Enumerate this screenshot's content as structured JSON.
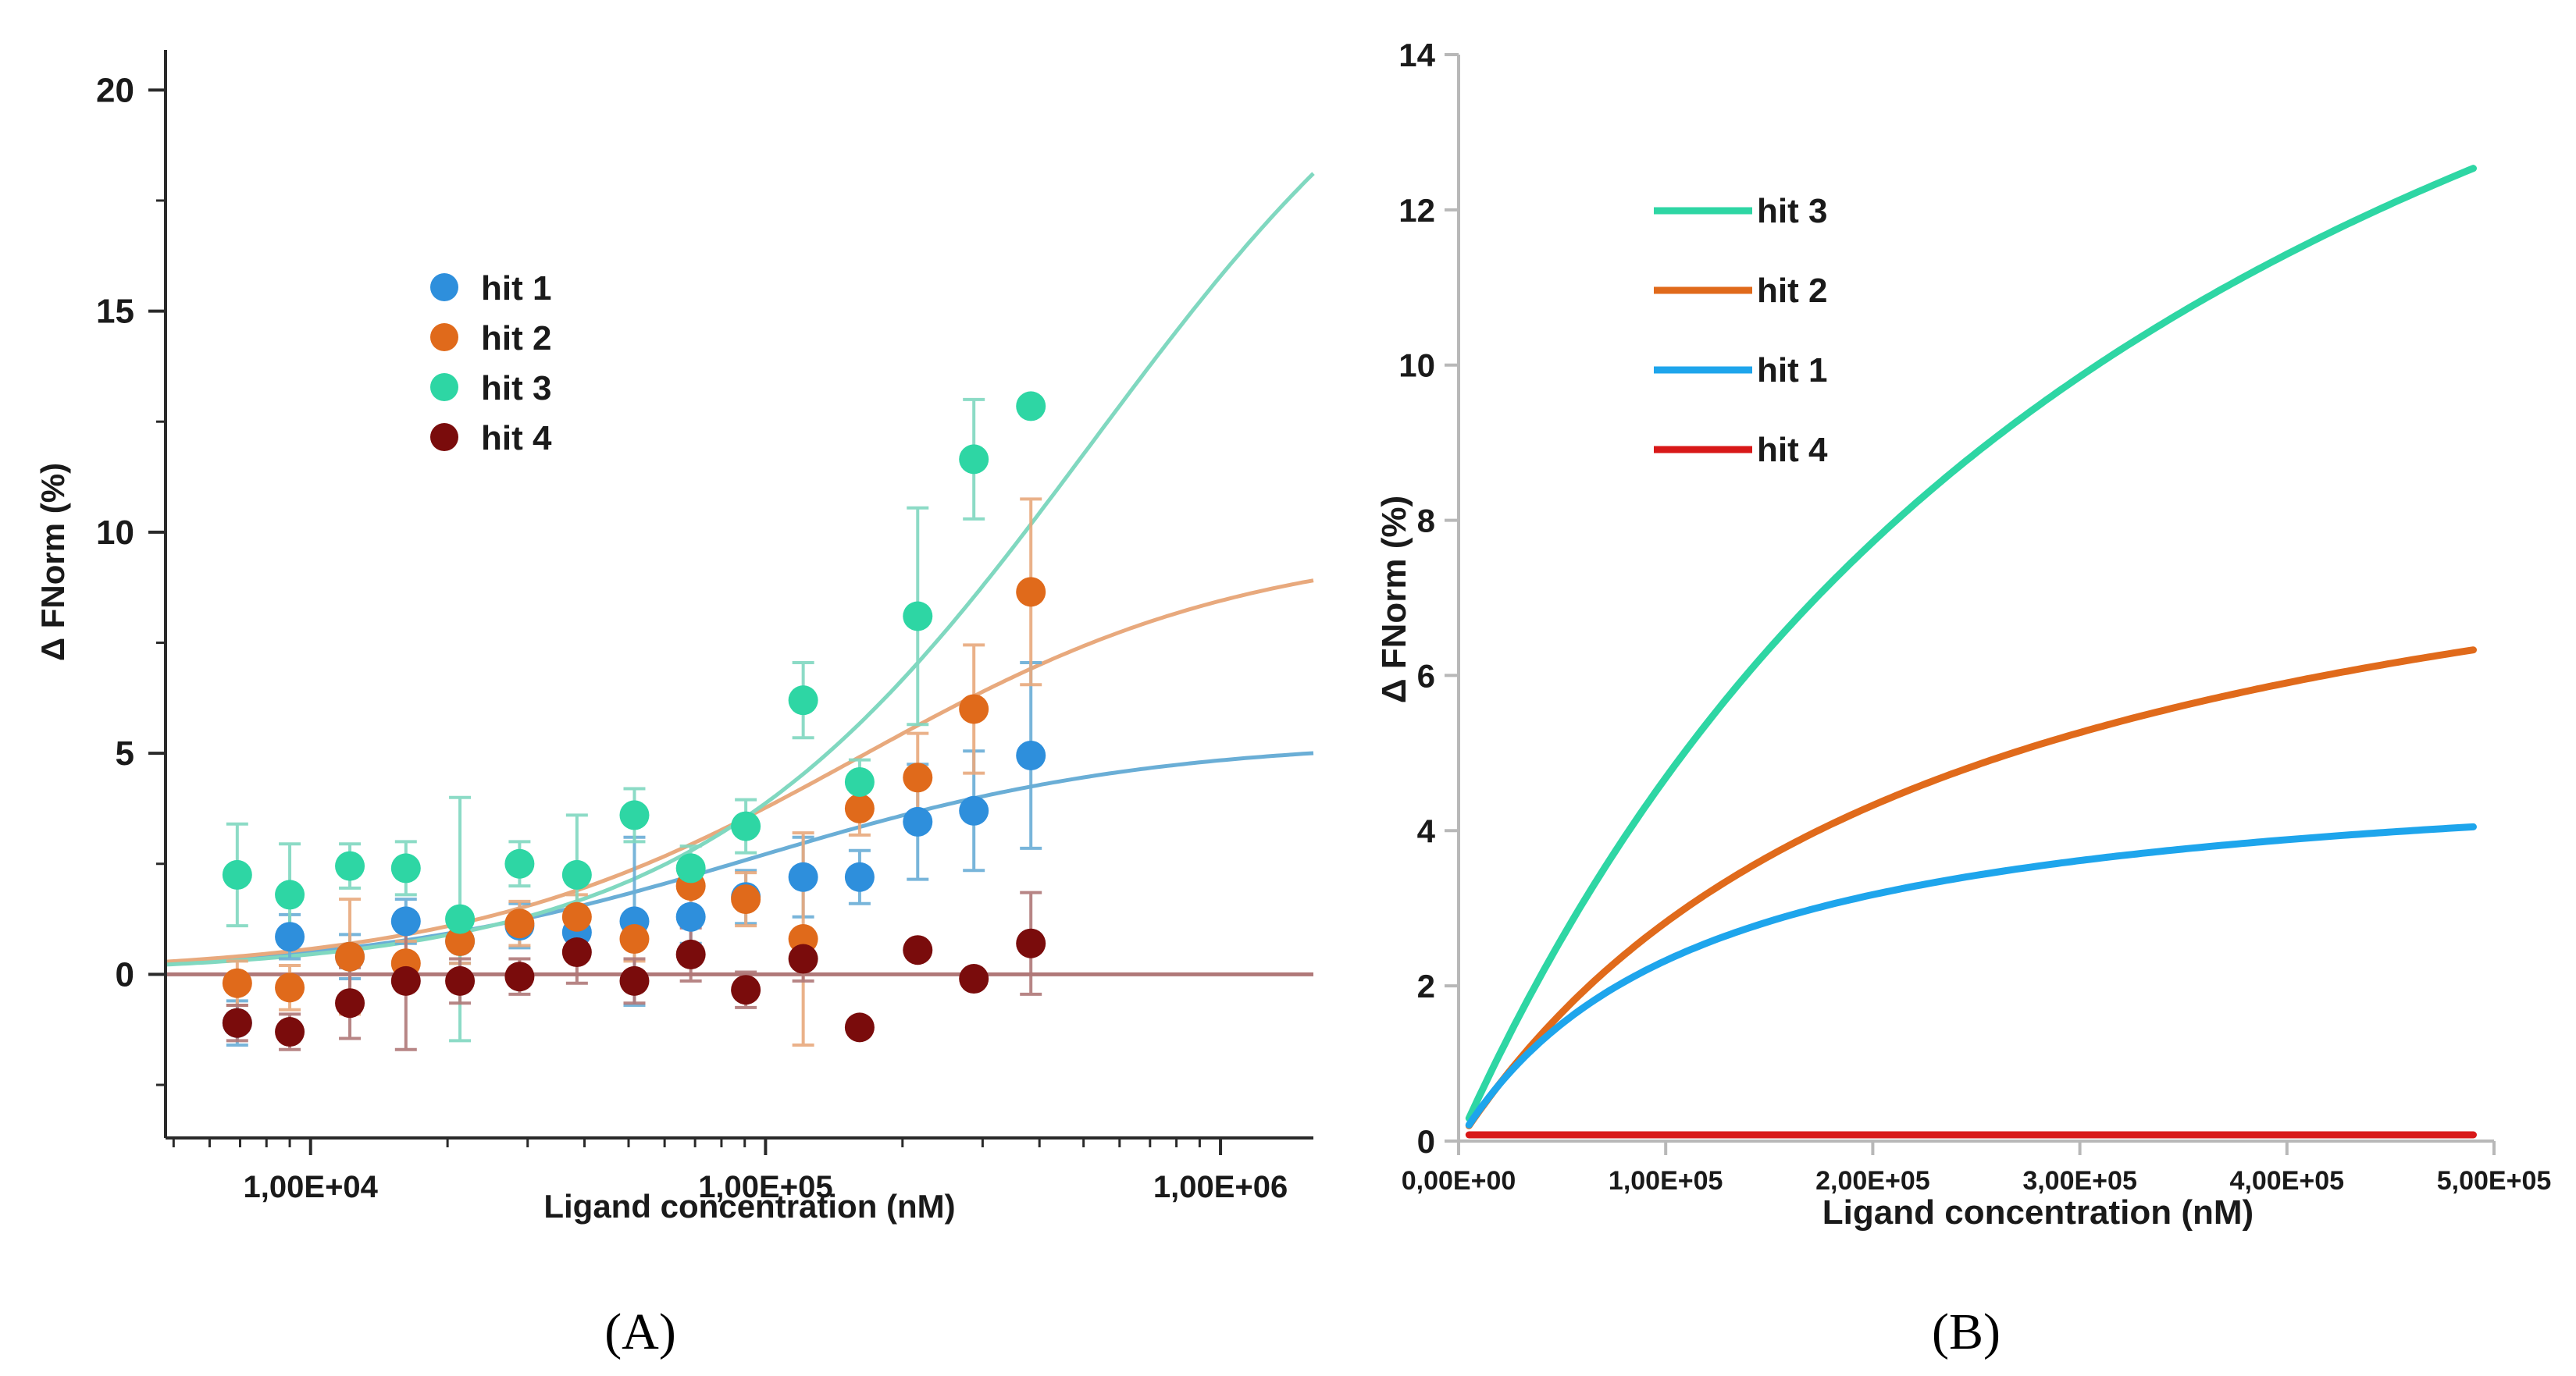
{
  "chart_data": [
    {
      "panel_label": "(A)",
      "type": "scatter",
      "x_scale": "log",
      "xlabel": "Ligand concentration (nM)",
      "ylabel": "Δ FNorm (%)",
      "xlim": [
        4800,
        1600000
      ],
      "ylim": [
        -3.7,
        20.8
      ],
      "x_ticks": [
        10000,
        100000,
        1000000
      ],
      "x_tick_labels": [
        "1,00E+04",
        "1,00E+05",
        "1,00E+06"
      ],
      "y_ticks": [
        0,
        5,
        10,
        15,
        20
      ],
      "y_tick_labels": [
        "0",
        "5",
        "10",
        "15",
        "20"
      ],
      "legend_position": "upper-left",
      "series": [
        {
          "name": "hit 1",
          "color": "#2e8fdc",
          "curve_color": "#6aaed6",
          "x": [
            6900,
            9000,
            12200,
            16200,
            21300,
            28800,
            38500,
            51500,
            68500,
            90500,
            121000,
            161000,
            216000,
            287000,
            383000
          ],
          "y": [
            -1.1,
            0.85,
            0.4,
            1.2,
            0.75,
            1.1,
            0.95,
            1.2,
            1.3,
            1.75,
            2.2,
            2.2,
            3.45,
            3.7,
            4.95
          ],
          "err": [
            0.5,
            0.5,
            0.5,
            0.5,
            0.5,
            0.5,
            0.5,
            1.9,
            0.6,
            0.6,
            0.9,
            0.6,
            1.3,
            1.35,
            2.1
          ],
          "fit": {
            "base": 0.0,
            "amplitude": 5.3,
            "kd": 95000
          }
        },
        {
          "name": "hit 2",
          "color": "#e06a1b",
          "curve_color": "#e8a97d",
          "x": [
            6900,
            9000,
            12200,
            16200,
            21300,
            28800,
            38500,
            51500,
            68500,
            90500,
            121000,
            161000,
            216000,
            287000,
            383000
          ],
          "y": [
            -0.2,
            -0.3,
            0.4,
            0.25,
            0.75,
            1.15,
            1.3,
            0.8,
            2.0,
            1.7,
            0.8,
            3.75,
            4.45,
            6.0,
            8.65
          ],
          "err": [
            0.5,
            0.5,
            1.3,
            0.5,
            0.5,
            0.5,
            0.5,
            0.5,
            0.6,
            0.6,
            2.4,
            0.6,
            1.0,
            1.45,
            2.1
          ],
          "fit": {
            "base": 0.0,
            "amplitude": 9.8,
            "kd": 160000
          }
        },
        {
          "name": "hit 3",
          "color": "#2ed6a4",
          "curve_color": "#80d8c0",
          "x": [
            6900,
            9000,
            12200,
            16200,
            21300,
            28800,
            38500,
            51500,
            68500,
            90500,
            121000,
            161000,
            216000,
            287000,
            383000
          ],
          "y": [
            2.25,
            1.8,
            2.45,
            2.4,
            1.25,
            2.5,
            2.25,
            3.6,
            2.4,
            3.35,
            6.2,
            4.35,
            8.1,
            11.65,
            12.85
          ],
          "err": [
            1.15,
            1.15,
            0.5,
            0.6,
            2.75,
            0.5,
            1.35,
            0.6,
            0.5,
            0.6,
            0.85,
            0.5,
            2.45,
            1.35,
            0.0
          ],
          "fit": {
            "base": 0.0,
            "amplitude": 24.0,
            "kd": 520000
          }
        },
        {
          "name": "hit 4",
          "color": "#7a0c0c",
          "curve_color": "#b07878",
          "x": [
            6900,
            9000,
            12200,
            16200,
            21300,
            28800,
            38500,
            51500,
            68500,
            90500,
            121000,
            161000,
            216000,
            287000,
            383000
          ],
          "y": [
            -1.1,
            -1.3,
            -0.65,
            -0.15,
            -0.15,
            -0.05,
            0.5,
            -0.15,
            0.45,
            -0.35,
            0.35,
            -1.2,
            0.55,
            -0.1,
            0.7
          ],
          "err": [
            0.4,
            0.4,
            0.8,
            1.55,
            0.5,
            0.4,
            0.7,
            0.5,
            0.6,
            0.4,
            0.5,
            0.0,
            0.0,
            0.0,
            1.15
          ],
          "fit": {
            "base": 0.0,
            "amplitude": 0.0,
            "kd": 100000
          }
        }
      ]
    },
    {
      "panel_label": "(B)",
      "type": "line",
      "xlabel": "Ligand concentration (nM)",
      "ylabel": "Δ FNorm (%)",
      "xlim": [
        0,
        500000
      ],
      "ylim": [
        0,
        14
      ],
      "x_ticks": [
        0,
        100000,
        200000,
        300000,
        400000,
        500000
      ],
      "x_tick_labels": [
        "0,00E+00",
        "1,00E+05",
        "2,00E+05",
        "3,00E+05",
        "4,00E+05",
        "5,00E+05"
      ],
      "y_ticks": [
        0,
        2,
        4,
        6,
        8,
        10,
        12,
        14
      ],
      "y_tick_labels": [
        "0",
        "2",
        "4",
        "6",
        "8",
        "10",
        "12",
        "14"
      ],
      "legend_position": "upper-left",
      "legend_order": [
        "hit 3",
        "hit 2",
        "hit 1",
        "hit 4"
      ],
      "x_range_plotted": [
        5000,
        490000
      ],
      "series": [
        {
          "name": "hit 3",
          "color": "#2ed6a4",
          "model": {
            "amplitude": 22.0,
            "kd": 370000
          }
        },
        {
          "name": "hit 2",
          "color": "#e06a1b",
          "model": {
            "amplitude": 9.3,
            "kd": 230000
          }
        },
        {
          "name": "hit 1",
          "color": "#1ea5ec",
          "model": {
            "amplitude": 5.0,
            "kd": 115000
          }
        },
        {
          "name": "hit 4",
          "color": "#d81818",
          "model": {
            "amplitude": 0.0,
            "kd": 100000,
            "offset": 0.08
          }
        }
      ]
    }
  ]
}
